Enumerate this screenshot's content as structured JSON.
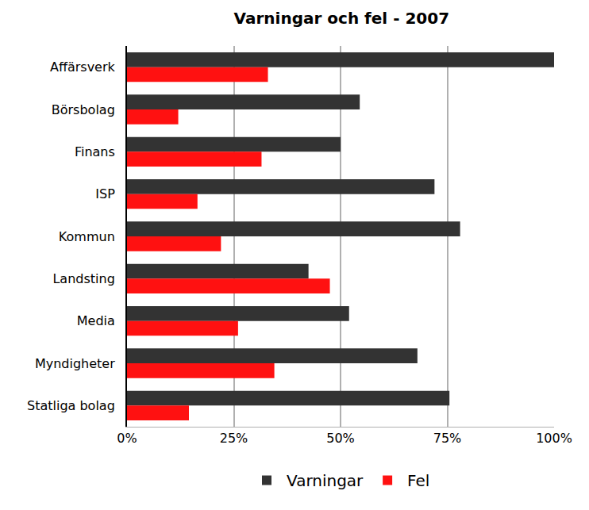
{
  "chart_data": {
    "type": "bar",
    "orientation": "horizontal",
    "title": "Varningar och fel - 2007",
    "categories": [
      "Affärsverk",
      "Börsbolag",
      "Finans",
      "ISP",
      "Kommun",
      "Landsting",
      "Media",
      "Myndigheter",
      "Statliga bolag"
    ],
    "series": [
      {
        "name": "Varningar",
        "color": "#333333",
        "values": [
          100,
          54.5,
          50,
          72,
          78,
          42.5,
          52,
          68,
          75.5
        ]
      },
      {
        "name": "Fel",
        "color": "#ff1111",
        "values": [
          33,
          12,
          31.5,
          16.5,
          22,
          47.5,
          26,
          34.5,
          14.5
        ]
      }
    ],
    "xlim": [
      0,
      100
    ],
    "xticks": [
      {
        "value": 0,
        "label": "0%"
      },
      {
        "value": 25,
        "label": "25%"
      },
      {
        "value": 50,
        "label": "50%"
      },
      {
        "value": 75,
        "label": "75%"
      },
      {
        "value": 100,
        "label": "100%"
      }
    ],
    "grid": true,
    "legend": "bottom"
  }
}
